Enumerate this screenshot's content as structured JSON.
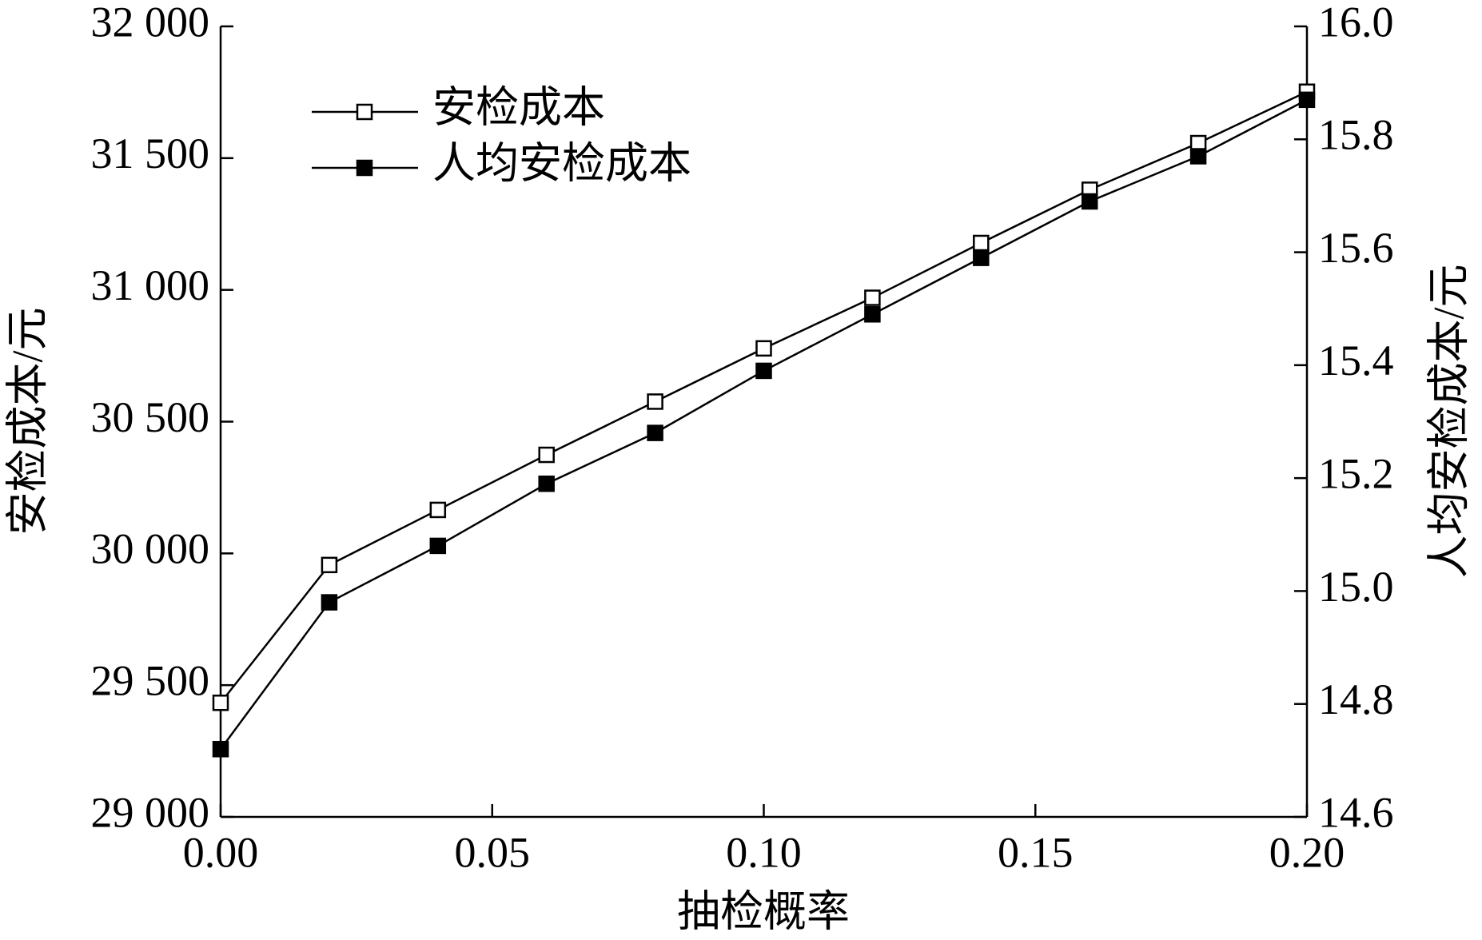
{
  "chart_data": {
    "type": "line",
    "xlabel": "抽检概率",
    "ylabel": "安检成本/元",
    "y2label": "人均安检成本/元",
    "x": [
      0,
      0.02,
      0.04,
      0.06,
      0.08,
      0.1,
      0.12,
      0.14,
      0.16,
      0.18,
      0.2
    ],
    "series": [
      {
        "name": "安检成本",
        "color": "#000000",
        "marker": "hollow-square",
        "values": [
          29433,
          29956,
          30165,
          30374,
          30576,
          30778,
          30970,
          31178,
          31380,
          31557,
          31752
        ]
      },
      {
        "name": "人均安检成本",
        "color": "#000000",
        "marker": "filled-square",
        "axis": "y2",
        "values": [
          14.72,
          14.98,
          15.08,
          15.19,
          15.28,
          15.39,
          15.49,
          15.59,
          15.69,
          15.77,
          15.87
        ]
      }
    ],
    "xlim": [
      0,
      0.2
    ],
    "xticks": [
      {
        "value": 0,
        "label": "0.00"
      },
      {
        "value": 0.05,
        "label": "0.05"
      },
      {
        "value": 0.1,
        "label": "0.10"
      },
      {
        "value": 0.15,
        "label": "0.15"
      },
      {
        "value": 0.2,
        "label": "0.20"
      }
    ],
    "ylim": [
      29000,
      32000
    ],
    "yticks": [
      {
        "value": 29000,
        "label": "29 000"
      },
      {
        "value": 29500,
        "label": "29 500"
      },
      {
        "value": 30000,
        "label": "30 000"
      },
      {
        "value": 30500,
        "label": "30 500"
      },
      {
        "value": 31000,
        "label": "31 000"
      },
      {
        "value": 31500,
        "label": "31 500"
      },
      {
        "value": 32000,
        "label": "32 000"
      }
    ],
    "y2lim": [
      14.6,
      16.0
    ],
    "y2ticks": [
      14.6,
      14.8,
      {
        "value": 15,
        "label": "15.0"
      },
      15.2,
      15.4,
      15.6,
      15.8,
      {
        "value": 16,
        "label": "16.0"
      }
    ],
    "legend": "upper-left",
    "grid": false
  }
}
